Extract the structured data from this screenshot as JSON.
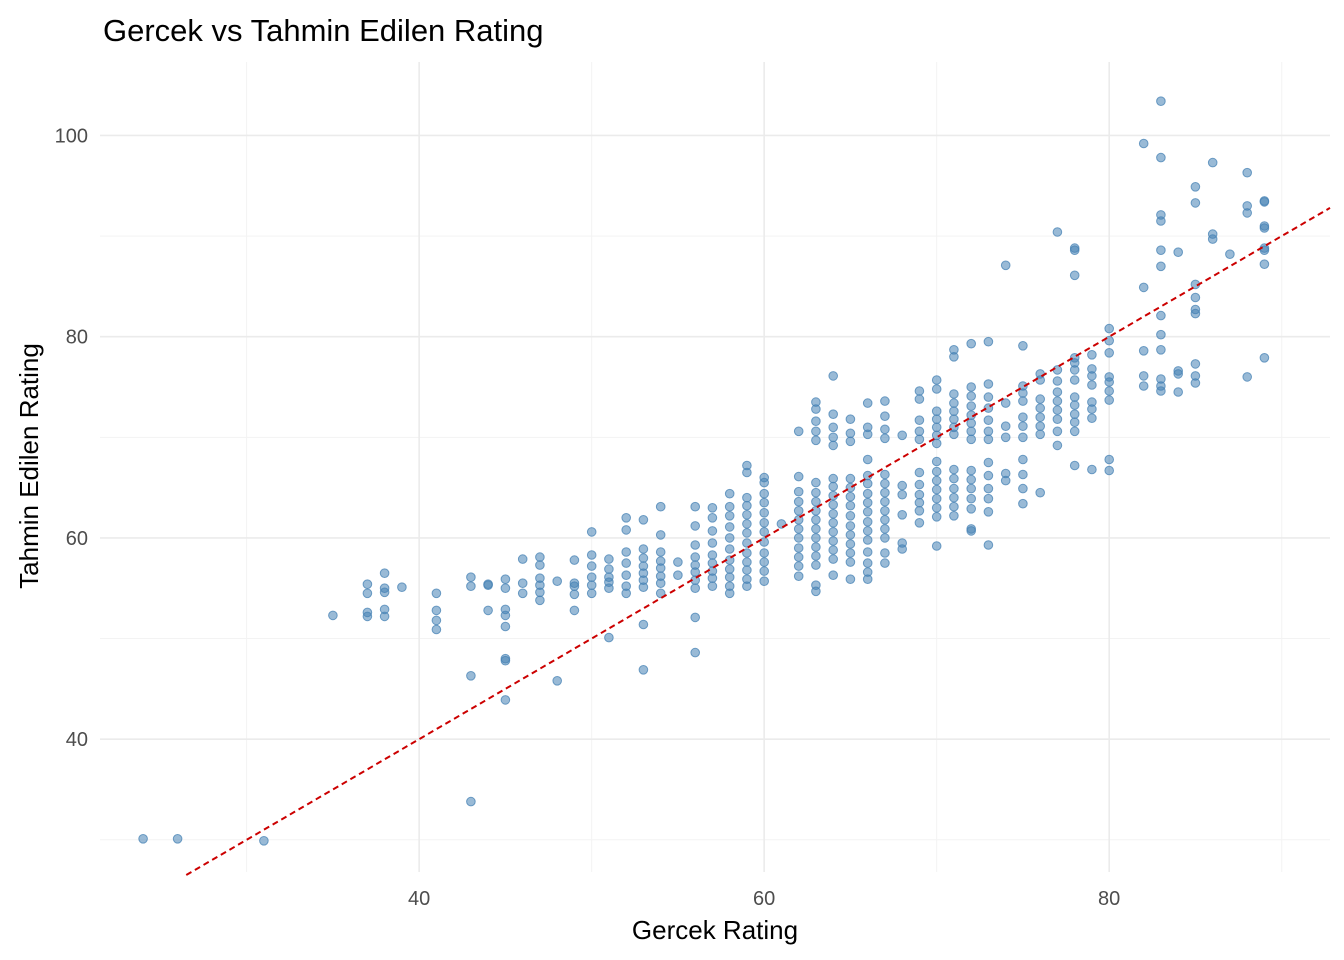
{
  "chart_data": {
    "type": "scatter",
    "title": "Gercek vs Tahmin Edilen Rating",
    "xlabel": "Gercek Rating",
    "ylabel": "Tahmin Edilen Rating",
    "xlim": [
      21.5,
      92.8
    ],
    "ylim": [
      26.8,
      107.3
    ],
    "x_ticks": [
      40,
      60,
      80
    ],
    "y_ticks": [
      40,
      60,
      80,
      100
    ],
    "x_minor": [
      30,
      50,
      70,
      90
    ],
    "y_minor": [
      30,
      50,
      70,
      90
    ],
    "grid": true,
    "point_color": "#4682b4",
    "point_alpha": 0.55,
    "reference_line": {
      "slope": 1,
      "intercept": 0,
      "color": "#cc0000",
      "style": "dashed"
    },
    "points": [
      [
        24,
        30.1
      ],
      [
        26,
        30.1
      ],
      [
        31,
        29.9
      ],
      [
        35,
        52.3
      ],
      [
        37,
        55.4
      ],
      [
        37,
        54.5
      ],
      [
        37,
        52.6
      ],
      [
        37,
        52.2
      ],
      [
        38,
        56.5
      ],
      [
        38,
        55.0
      ],
      [
        38,
        54.6
      ],
      [
        38,
        52.9
      ],
      [
        38,
        52.2
      ],
      [
        39,
        55.1
      ],
      [
        41,
        54.5
      ],
      [
        41,
        52.8
      ],
      [
        41,
        51.8
      ],
      [
        41,
        50.9
      ],
      [
        43,
        56.1
      ],
      [
        43,
        55.2
      ],
      [
        43,
        46.3
      ],
      [
        43,
        33.8
      ],
      [
        44,
        55.4
      ],
      [
        44,
        55.3
      ],
      [
        44,
        52.8
      ],
      [
        45,
        55.9
      ],
      [
        45,
        55.0
      ],
      [
        45,
        52.9
      ],
      [
        45,
        52.3
      ],
      [
        45,
        51.2
      ],
      [
        45,
        48.0
      ],
      [
        45,
        47.8
      ],
      [
        45,
        43.9
      ],
      [
        46,
        57.9
      ],
      [
        46,
        55.5
      ],
      [
        46,
        54.5
      ],
      [
        47,
        58.1
      ],
      [
        47,
        57.3
      ],
      [
        47,
        56.0
      ],
      [
        47,
        55.3
      ],
      [
        47,
        54.6
      ],
      [
        47,
        53.8
      ],
      [
        48,
        55.7
      ],
      [
        48,
        45.8
      ],
      [
        49,
        57.8
      ],
      [
        49,
        55.5
      ],
      [
        49,
        55.2
      ],
      [
        49,
        54.4
      ],
      [
        49,
        52.8
      ],
      [
        50,
        60.6
      ],
      [
        50,
        58.3
      ],
      [
        50,
        57.2
      ],
      [
        50,
        56.1
      ],
      [
        50,
        55.3
      ],
      [
        50,
        54.5
      ],
      [
        51,
        57.9
      ],
      [
        51,
        56.9
      ],
      [
        51,
        56.1
      ],
      [
        51,
        55.6
      ],
      [
        51,
        55.0
      ],
      [
        51,
        50.1
      ],
      [
        52,
        62.0
      ],
      [
        52,
        60.8
      ],
      [
        52,
        58.6
      ],
      [
        52,
        57.5
      ],
      [
        52,
        56.3
      ],
      [
        52,
        55.2
      ],
      [
        52,
        54.5
      ],
      [
        53,
        61.8
      ],
      [
        53,
        58.9
      ],
      [
        53,
        58.0
      ],
      [
        53,
        57.2
      ],
      [
        53,
        56.5
      ],
      [
        53,
        55.8
      ],
      [
        53,
        55.1
      ],
      [
        53,
        51.4
      ],
      [
        53,
        46.9
      ],
      [
        54,
        63.1
      ],
      [
        54,
        60.3
      ],
      [
        54,
        58.6
      ],
      [
        54,
        57.7
      ],
      [
        54,
        57.0
      ],
      [
        54,
        56.2
      ],
      [
        54,
        55.5
      ],
      [
        54,
        54.5
      ],
      [
        55,
        57.6
      ],
      [
        55,
        56.3
      ],
      [
        56,
        63.1
      ],
      [
        56,
        61.2
      ],
      [
        56,
        59.3
      ],
      [
        56,
        58.1
      ],
      [
        56,
        57.3
      ],
      [
        56,
        56.6
      ],
      [
        56,
        55.8
      ],
      [
        56,
        55.0
      ],
      [
        56,
        52.1
      ],
      [
        56,
        48.6
      ],
      [
        57,
        63.0
      ],
      [
        57,
        62.0
      ],
      [
        57,
        60.7
      ],
      [
        57,
        59.5
      ],
      [
        57,
        58.3
      ],
      [
        57,
        57.5
      ],
      [
        57,
        56.7
      ],
      [
        57,
        56.0
      ],
      [
        57,
        55.2
      ],
      [
        58,
        64.4
      ],
      [
        58,
        63.1
      ],
      [
        58,
        62.2
      ],
      [
        58,
        61.1
      ],
      [
        58,
        60.0
      ],
      [
        58,
        58.9
      ],
      [
        58,
        57.8
      ],
      [
        58,
        56.9
      ],
      [
        58,
        56.1
      ],
      [
        58,
        55.2
      ],
      [
        58,
        54.5
      ],
      [
        59,
        67.2
      ],
      [
        59,
        66.5
      ],
      [
        59,
        64.0
      ],
      [
        59,
        63.2
      ],
      [
        59,
        62.3
      ],
      [
        59,
        61.4
      ],
      [
        59,
        60.5
      ],
      [
        59,
        59.5
      ],
      [
        59,
        58.5
      ],
      [
        59,
        57.6
      ],
      [
        59,
        56.8
      ],
      [
        59,
        55.9
      ],
      [
        59,
        55.2
      ],
      [
        60,
        66.0
      ],
      [
        60,
        65.5
      ],
      [
        60,
        64.4
      ],
      [
        60,
        63.5
      ],
      [
        60,
        62.5
      ],
      [
        60,
        61.5
      ],
      [
        60,
        60.6
      ],
      [
        60,
        59.6
      ],
      [
        60,
        58.5
      ],
      [
        60,
        57.6
      ],
      [
        60,
        56.7
      ],
      [
        60,
        55.7
      ],
      [
        61,
        61.4
      ],
      [
        62,
        70.6
      ],
      [
        62,
        66.1
      ],
      [
        62,
        64.6
      ],
      [
        62,
        63.6
      ],
      [
        62,
        62.7
      ],
      [
        62,
        61.8
      ],
      [
        62,
        60.9
      ],
      [
        62,
        60.0
      ],
      [
        62,
        59.0
      ],
      [
        62,
        58.1
      ],
      [
        62,
        57.2
      ],
      [
        62,
        56.2
      ],
      [
        63,
        73.5
      ],
      [
        63,
        72.8
      ],
      [
        63,
        71.6
      ],
      [
        63,
        70.6
      ],
      [
        63,
        69.7
      ],
      [
        63,
        65.5
      ],
      [
        63,
        64.5
      ],
      [
        63,
        63.6
      ],
      [
        63,
        62.7
      ],
      [
        63,
        61.8
      ],
      [
        63,
        60.9
      ],
      [
        63,
        60.0
      ],
      [
        63,
        59.1
      ],
      [
        63,
        58.2
      ],
      [
        63,
        57.3
      ],
      [
        63,
        55.3
      ],
      [
        63,
        54.7
      ],
      [
        64,
        76.1
      ],
      [
        64,
        72.3
      ],
      [
        64,
        71.0
      ],
      [
        64,
        70.0
      ],
      [
        64,
        69.2
      ],
      [
        64,
        65.9
      ],
      [
        64,
        65.1
      ],
      [
        64,
        64.2
      ],
      [
        64,
        63.3
      ],
      [
        64,
        62.4
      ],
      [
        64,
        61.5
      ],
      [
        64,
        60.6
      ],
      [
        64,
        59.7
      ],
      [
        64,
        58.8
      ],
      [
        64,
        57.9
      ],
      [
        64,
        56.3
      ],
      [
        65,
        71.8
      ],
      [
        65,
        70.4
      ],
      [
        65,
        69.6
      ],
      [
        65,
        65.9
      ],
      [
        65,
        65.0
      ],
      [
        65,
        64.1
      ],
      [
        65,
        63.2
      ],
      [
        65,
        62.2
      ],
      [
        65,
        61.2
      ],
      [
        65,
        60.3
      ],
      [
        65,
        59.4
      ],
      [
        65,
        58.5
      ],
      [
        65,
        57.6
      ],
      [
        65,
        55.9
      ],
      [
        66,
        73.4
      ],
      [
        66,
        71.0
      ],
      [
        66,
        70.3
      ],
      [
        66,
        67.8
      ],
      [
        66,
        66.2
      ],
      [
        66,
        65.4
      ],
      [
        66,
        64.4
      ],
      [
        66,
        63.5
      ],
      [
        66,
        62.6
      ],
      [
        66,
        61.6
      ],
      [
        66,
        60.7
      ],
      [
        66,
        59.8
      ],
      [
        66,
        58.6
      ],
      [
        66,
        57.5
      ],
      [
        66,
        56.6
      ],
      [
        66,
        55.9
      ],
      [
        67,
        73.6
      ],
      [
        67,
        72.1
      ],
      [
        67,
        70.8
      ],
      [
        67,
        69.9
      ],
      [
        67,
        66.3
      ],
      [
        67,
        65.4
      ],
      [
        67,
        64.5
      ],
      [
        67,
        63.6
      ],
      [
        67,
        62.7
      ],
      [
        67,
        61.8
      ],
      [
        67,
        60.9
      ],
      [
        67,
        60.0
      ],
      [
        67,
        58.5
      ],
      [
        67,
        57.5
      ],
      [
        68,
        70.2
      ],
      [
        68,
        65.2
      ],
      [
        68,
        64.3
      ],
      [
        68,
        62.3
      ],
      [
        68,
        59.5
      ],
      [
        68,
        58.9
      ],
      [
        69,
        74.6
      ],
      [
        69,
        73.8
      ],
      [
        69,
        71.7
      ],
      [
        69,
        70.6
      ],
      [
        69,
        69.8
      ],
      [
        69,
        66.5
      ],
      [
        69,
        65.3
      ],
      [
        69,
        64.3
      ],
      [
        69,
        63.5
      ],
      [
        69,
        62.7
      ],
      [
        69,
        61.5
      ],
      [
        70,
        75.7
      ],
      [
        70,
        74.8
      ],
      [
        70,
        72.6
      ],
      [
        70,
        71.8
      ],
      [
        70,
        71.0
      ],
      [
        70,
        70.2
      ],
      [
        70,
        69.4
      ],
      [
        70,
        67.6
      ],
      [
        70,
        66.6
      ],
      [
        70,
        65.7
      ],
      [
        70,
        64.8
      ],
      [
        70,
        63.9
      ],
      [
        70,
        63.0
      ],
      [
        70,
        62.1
      ],
      [
        70,
        59.2
      ],
      [
        71,
        78.7
      ],
      [
        71,
        78.0
      ],
      [
        71,
        74.3
      ],
      [
        71,
        73.4
      ],
      [
        71,
        72.6
      ],
      [
        71,
        71.8
      ],
      [
        71,
        71.0
      ],
      [
        71,
        70.3
      ],
      [
        71,
        66.8
      ],
      [
        71,
        65.9
      ],
      [
        71,
        64.9
      ],
      [
        71,
        64.0
      ],
      [
        71,
        63.1
      ],
      [
        71,
        62.2
      ],
      [
        72,
        79.3
      ],
      [
        72,
        75.0
      ],
      [
        72,
        74.1
      ],
      [
        72,
        73.1
      ],
      [
        72,
        72.2
      ],
      [
        72,
        71.4
      ],
      [
        72,
        70.6
      ],
      [
        72,
        69.8
      ],
      [
        72,
        66.7
      ],
      [
        72,
        65.8
      ],
      [
        72,
        64.9
      ],
      [
        72,
        63.9
      ],
      [
        72,
        62.9
      ],
      [
        72,
        60.9
      ],
      [
        72,
        60.7
      ],
      [
        73,
        79.5
      ],
      [
        73,
        75.3
      ],
      [
        73,
        74.0
      ],
      [
        73,
        72.9
      ],
      [
        73,
        71.7
      ],
      [
        73,
        70.6
      ],
      [
        73,
        69.8
      ],
      [
        73,
        67.5
      ],
      [
        73,
        66.2
      ],
      [
        73,
        64.9
      ],
      [
        73,
        63.9
      ],
      [
        73,
        62.6
      ],
      [
        73,
        59.3
      ],
      [
        74,
        87.1
      ],
      [
        74,
        73.4
      ],
      [
        74,
        71.1
      ],
      [
        74,
        70.0
      ],
      [
        74,
        66.4
      ],
      [
        74,
        65.7
      ],
      [
        75,
        79.1
      ],
      [
        75,
        75.1
      ],
      [
        75,
        74.4
      ],
      [
        75,
        73.6
      ],
      [
        75,
        72.0
      ],
      [
        75,
        71.1
      ],
      [
        75,
        70.0
      ],
      [
        75,
        67.8
      ],
      [
        75,
        66.3
      ],
      [
        75,
        64.9
      ],
      [
        75,
        63.4
      ],
      [
        76,
        76.3
      ],
      [
        76,
        75.7
      ],
      [
        76,
        73.8
      ],
      [
        76,
        72.9
      ],
      [
        76,
        72.0
      ],
      [
        76,
        71.1
      ],
      [
        76,
        70.3
      ],
      [
        76,
        64.5
      ],
      [
        77,
        90.4
      ],
      [
        77,
        76.7
      ],
      [
        77,
        75.6
      ],
      [
        77,
        74.5
      ],
      [
        77,
        73.6
      ],
      [
        77,
        72.7
      ],
      [
        77,
        71.8
      ],
      [
        77,
        70.6
      ],
      [
        77,
        69.2
      ],
      [
        78,
        88.8
      ],
      [
        78,
        88.6
      ],
      [
        78,
        86.1
      ],
      [
        78,
        77.9
      ],
      [
        78,
        77.4
      ],
      [
        78,
        76.7
      ],
      [
        78,
        75.7
      ],
      [
        78,
        74.0
      ],
      [
        78,
        73.2
      ],
      [
        78,
        72.3
      ],
      [
        78,
        71.5
      ],
      [
        78,
        70.6
      ],
      [
        78,
        67.2
      ],
      [
        79,
        78.2
      ],
      [
        79,
        76.8
      ],
      [
        79,
        76.1
      ],
      [
        79,
        75.2
      ],
      [
        79,
        73.5
      ],
      [
        79,
        72.8
      ],
      [
        79,
        71.9
      ],
      [
        79,
        66.8
      ],
      [
        80,
        80.8
      ],
      [
        80,
        79.6
      ],
      [
        80,
        78.4
      ],
      [
        80,
        76.0
      ],
      [
        80,
        75.5
      ],
      [
        80,
        74.6
      ],
      [
        80,
        73.7
      ],
      [
        80,
        67.8
      ],
      [
        80,
        66.7
      ],
      [
        82,
        99.2
      ],
      [
        82,
        84.9
      ],
      [
        82,
        78.6
      ],
      [
        82,
        76.1
      ],
      [
        82,
        75.1
      ],
      [
        83,
        103.4
      ],
      [
        83,
        97.8
      ],
      [
        83,
        92.1
      ],
      [
        83,
        91.5
      ],
      [
        83,
        88.6
      ],
      [
        83,
        87.0
      ],
      [
        83,
        82.1
      ],
      [
        83,
        80.2
      ],
      [
        83,
        78.7
      ],
      [
        83,
        75.8
      ],
      [
        83,
        75.1
      ],
      [
        83,
        74.6
      ],
      [
        84,
        88.4
      ],
      [
        84,
        76.6
      ],
      [
        84,
        76.3
      ],
      [
        84,
        74.5
      ],
      [
        85,
        94.9
      ],
      [
        85,
        93.3
      ],
      [
        85,
        85.2
      ],
      [
        85,
        83.9
      ],
      [
        85,
        82.7
      ],
      [
        85,
        82.3
      ],
      [
        85,
        77.3
      ],
      [
        85,
        76.1
      ],
      [
        85,
        75.4
      ],
      [
        86,
        97.3
      ],
      [
        86,
        90.2
      ],
      [
        86,
        89.7
      ],
      [
        87,
        88.2
      ],
      [
        88,
        96.3
      ],
      [
        88,
        93.0
      ],
      [
        88,
        92.3
      ],
      [
        88,
        76.0
      ],
      [
        89,
        93.5
      ],
      [
        89,
        93.4
      ],
      [
        89,
        91.0
      ],
      [
        89,
        90.8
      ],
      [
        89,
        88.8
      ],
      [
        89,
        88.6
      ],
      [
        89,
        87.2
      ],
      [
        89,
        77.9
      ]
    ]
  }
}
